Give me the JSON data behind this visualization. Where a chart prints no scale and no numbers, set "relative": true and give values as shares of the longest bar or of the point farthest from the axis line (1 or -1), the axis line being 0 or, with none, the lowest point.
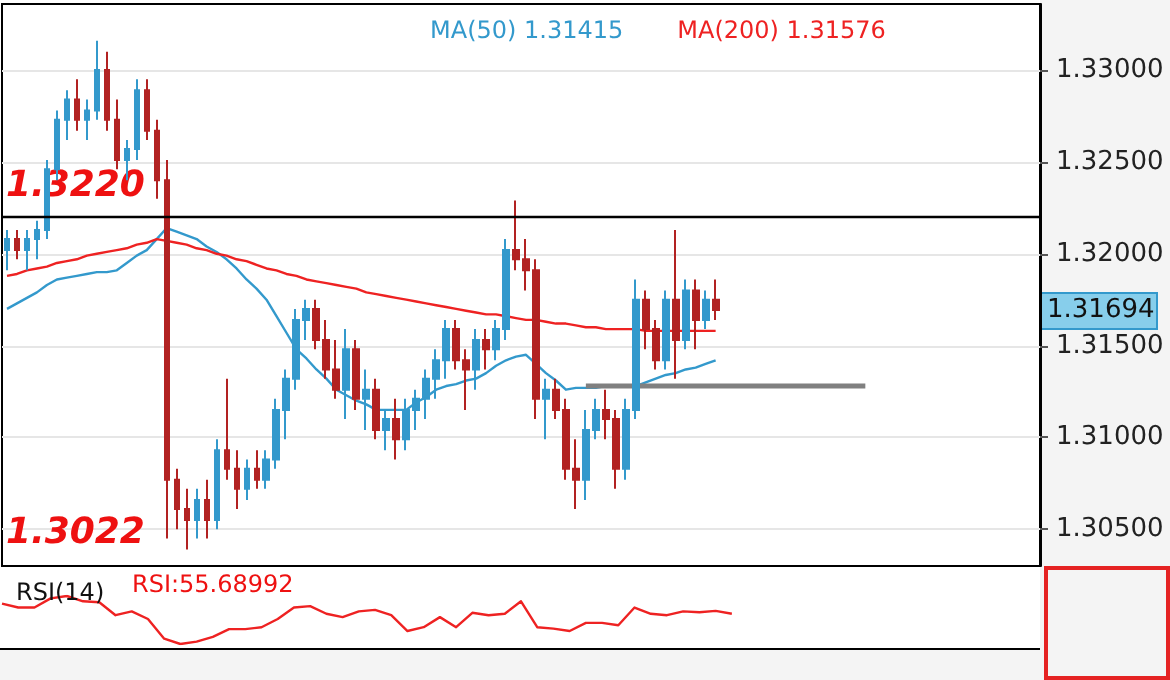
{
  "chart_data": [
    {
      "type": "candlestick",
      "categories": [
        null,
        null,
        null,
        null,
        null,
        null,
        null,
        null,
        null,
        null,
        null,
        null,
        null,
        null,
        null,
        null,
        null,
        null,
        null,
        null,
        null,
        null,
        null,
        null,
        null,
        null,
        null,
        null,
        null,
        null,
        null,
        null,
        null,
        null,
        null,
        null,
        null,
        null,
        null,
        null,
        null,
        null,
        null,
        null,
        null,
        null,
        null,
        null,
        null,
        null,
        null,
        null,
        null,
        null,
        null,
        null,
        null,
        null,
        null,
        null,
        null,
        null,
        null,
        null,
        null,
        null,
        null,
        null,
        null,
        null,
        null,
        null,
        null,
        null,
        null,
        null,
        null,
        null,
        null,
        null,
        null,
        null,
        null,
        null,
        null,
        null,
        null,
        null,
        null,
        null,
        null,
        null,
        null,
        null,
        null,
        null,
        null,
        null,
        null,
        null,
        null,
        null,
        null,
        null
      ],
      "ohlc": [
        [
          1.3202,
          1.3213,
          1.3191,
          1.3208
        ],
        [
          1.3208,
          1.3213,
          1.3197,
          1.3202
        ],
        [
          1.3202,
          1.3213,
          1.3191,
          1.3208
        ],
        [
          1.3208,
          1.3218,
          1.3197,
          1.3213
        ],
        [
          1.3213,
          1.3251,
          1.3208,
          1.3246
        ],
        [
          1.3246,
          1.3278,
          1.324,
          1.3273
        ],
        [
          1.3273,
          1.3289,
          1.3262,
          1.3284
        ],
        [
          1.3284,
          1.3295,
          1.3267,
          1.3273
        ],
        [
          1.3273,
          1.3284,
          1.3262,
          1.3278
        ],
        [
          1.3278,
          1.3316,
          1.3273,
          1.33
        ],
        [
          1.33,
          1.331,
          1.3267,
          1.3273
        ],
        [
          1.3273,
          1.3284,
          1.3246,
          1.3251
        ],
        [
          1.3251,
          1.3262,
          1.324,
          1.3257
        ],
        [
          1.3257,
          1.3295,
          1.3251,
          1.3289
        ],
        [
          1.3289,
          1.3295,
          1.3262,
          1.3267
        ],
        [
          1.3267,
          1.3273,
          1.323,
          1.324
        ],
        [
          1.324,
          1.3251,
          1.3045,
          1.3077
        ],
        [
          1.3077,
          1.3083,
          1.305,
          1.3061
        ],
        [
          1.3061,
          1.3072,
          1.3039,
          1.3055
        ],
        [
          1.3055,
          1.3072,
          1.3045,
          1.3066
        ],
        [
          1.3066,
          1.3077,
          1.3045,
          1.3055
        ],
        [
          1.3055,
          1.3099,
          1.305,
          1.3093
        ],
        [
          1.3093,
          1.3132,
          1.3077,
          1.3083
        ],
        [
          1.3083,
          1.3093,
          1.3061,
          1.3072
        ],
        [
          1.3072,
          1.3088,
          1.3066,
          1.3083
        ],
        [
          1.3083,
          1.3093,
          1.3072,
          1.3077
        ],
        [
          1.3077,
          1.3093,
          1.3072,
          1.3088
        ],
        [
          1.3088,
          1.3121,
          1.3083,
          1.3115
        ],
        [
          1.3115,
          1.3137,
          1.3099,
          1.3132
        ],
        [
          1.3132,
          1.317,
          1.3126,
          1.3164
        ],
        [
          1.3164,
          1.3175,
          1.3153,
          1.317
        ],
        [
          1.317,
          1.3175,
          1.3148,
          1.3153
        ],
        [
          1.3153,
          1.3164,
          1.3132,
          1.3137
        ],
        [
          1.3137,
          1.3153,
          1.3121,
          1.3126
        ],
        [
          1.3126,
          1.3159,
          1.311,
          1.3148
        ],
        [
          1.3148,
          1.3153,
          1.3115,
          1.3121
        ],
        [
          1.3121,
          1.3137,
          1.3104,
          1.3126
        ],
        [
          1.3126,
          1.3132,
          1.3099,
          1.3104
        ],
        [
          1.3104,
          1.3115,
          1.3093,
          1.311
        ],
        [
          1.311,
          1.3121,
          1.3088,
          1.3099
        ],
        [
          1.3099,
          1.3121,
          1.3093,
          1.3115
        ],
        [
          1.3115,
          1.3126,
          1.3104,
          1.3121
        ],
        [
          1.3121,
          1.3137,
          1.311,
          1.3132
        ],
        [
          1.3132,
          1.3148,
          1.3121,
          1.3142
        ],
        [
          1.3142,
          1.3164,
          1.3132,
          1.3159
        ],
        [
          1.3159,
          1.3164,
          1.3137,
          1.3142
        ],
        [
          1.3142,
          1.3148,
          1.3115,
          1.3137
        ],
        [
          1.3137,
          1.3159,
          1.3126,
          1.3153
        ],
        [
          1.3153,
          1.3159,
          1.3137,
          1.3148
        ],
        [
          1.3148,
          1.3164,
          1.3142,
          1.3159
        ],
        [
          1.3159,
          1.3208,
          1.3153,
          1.3202
        ],
        [
          1.3202,
          1.3229,
          1.3191,
          1.3197
        ],
        [
          1.3197,
          1.3208,
          1.318,
          1.3191
        ],
        [
          1.3191,
          1.3197,
          1.311,
          1.3121
        ],
        [
          1.3121,
          1.3132,
          1.3099,
          1.3126
        ],
        [
          1.3126,
          1.3132,
          1.311,
          1.3115
        ],
        [
          1.3115,
          1.3121,
          1.3077,
          1.3083
        ],
        [
          1.3083,
          1.3099,
          1.3061,
          1.3077
        ],
        [
          1.3077,
          1.3115,
          1.3066,
          1.3104
        ],
        [
          1.3104,
          1.3121,
          1.3099,
          1.3115
        ],
        [
          1.3115,
          1.3126,
          1.3099,
          1.311
        ],
        [
          1.311,
          1.3115,
          1.3072,
          1.3083
        ],
        [
          1.3083,
          1.3121,
          1.3077,
          1.3115
        ],
        [
          1.3115,
          1.3186,
          1.311,
          1.3175
        ],
        [
          1.3175,
          1.318,
          1.3148,
          1.3159
        ],
        [
          1.3159,
          1.3164,
          1.3137,
          1.3142
        ],
        [
          1.3142,
          1.318,
          1.3137,
          1.3175
        ],
        [
          1.3175,
          1.3213,
          1.3132,
          1.3153
        ],
        [
          1.3153,
          1.3186,
          1.3148,
          1.318
        ],
        [
          1.318,
          1.3186,
          1.3148,
          1.3164
        ],
        [
          1.3164,
          1.318,
          1.3159,
          1.3175
        ],
        [
          1.3175,
          1.3186,
          1.3164,
          1.31694
        ],
        null,
        null,
        null,
        null,
        null,
        null,
        null,
        null,
        null,
        null,
        null,
        null,
        null,
        null,
        null,
        null,
        null,
        null,
        null,
        null,
        null,
        null,
        null,
        null,
        null,
        null,
        null,
        null,
        null,
        null,
        null,
        null
      ],
      "colors": [
        "#3399cc",
        "#b22222",
        "#3399cc",
        "#3399cc",
        "#3399cc",
        "#3399cc",
        "#3399cc",
        "#b22222",
        "#3399cc",
        "#3399cc",
        "#b22222",
        "#b22222",
        "#3399cc",
        "#3399cc",
        "#b22222",
        "#b22222",
        "#b22222",
        "#b22222",
        "#b22222",
        "#3399cc",
        "#b22222",
        "#3399cc",
        "#b22222",
        "#b22222",
        "#3399cc",
        "#b22222",
        "#3399cc",
        "#3399cc",
        "#3399cc",
        "#3399cc",
        "#3399cc",
        "#b22222",
        "#b22222",
        "#b22222",
        "#3399cc",
        "#b22222",
        "#3399cc",
        "#b22222",
        "#3399cc",
        "#b22222",
        "#3399cc",
        "#3399cc",
        "#3399cc",
        "#3399cc",
        "#3399cc",
        "#b22222",
        "#b22222",
        "#3399cc",
        "#b22222",
        "#3399cc",
        "#3399cc",
        "#b22222",
        "#b22222",
        "#b22222",
        "#3399cc",
        "#b22222",
        "#b22222",
        "#b22222",
        "#3399cc",
        "#3399cc",
        "#b22222",
        "#b22222",
        "#3399cc",
        "#3399cc",
        "#b22222",
        "#b22222",
        "#3399cc",
        "#b22222",
        "#3399cc",
        "#b22222",
        "#3399cc",
        "#b22222",
        null,
        null,
        null,
        null,
        null,
        null,
        null,
        null,
        null,
        null,
        null,
        null,
        null,
        null,
        null,
        null,
        null,
        null,
        null,
        null,
        null,
        null,
        null,
        null,
        null,
        null,
        null,
        null,
        null,
        null,
        null,
        null
      ],
      "series": [
        {
          "name": "MA(50) 1.31415",
          "type": "line",
          "color": "#3399cc",
          "values": [
            1.317,
            1.3173,
            1.3176,
            1.3179,
            1.3183,
            1.3186,
            1.3187,
            1.3188,
            1.3189,
            1.319,
            1.319,
            1.3191,
            1.3195,
            1.3199,
            1.3202,
            1.3208,
            1.3214,
            1.3212,
            1.321,
            1.3208,
            1.3204,
            1.3201,
            1.3197,
            1.3192,
            1.3186,
            1.3181,
            1.3175,
            1.3166,
            1.3157,
            1.3148,
            1.3143,
            1.3137,
            1.3132,
            1.3126,
            1.3123,
            1.312,
            1.3118,
            1.3115,
            1.3115,
            1.3115,
            1.3115,
            1.3119,
            1.3122,
            1.3126,
            1.3128,
            1.3129,
            1.3131,
            1.3132,
            1.3135,
            1.3139,
            1.3142,
            1.3144,
            1.3145,
            1.314,
            1.3135,
            1.3131,
            1.3126,
            1.3127,
            1.3127,
            1.3127,
            1.3128,
            1.3128,
            1.3128,
            1.3128,
            1.313,
            1.3132,
            1.3134,
            1.3135,
            1.3137,
            1.3138,
            1.314,
            1.3142,
            null,
            null,
            null,
            null,
            null,
            null,
            null,
            null,
            null,
            null,
            null,
            null,
            null,
            null,
            null,
            null,
            null,
            null,
            null,
            null,
            null,
            null,
            null,
            null,
            null,
            null,
            null,
            null,
            null,
            null,
            null,
            null
          ]
        },
        {
          "name": "MA(200) 1.31576",
          "type": "line",
          "color": "#ee2222",
          "values": [
            1.3188,
            1.3189,
            1.3191,
            1.3192,
            1.3193,
            1.3195,
            1.3196,
            1.3197,
            1.3199,
            1.32,
            1.3201,
            1.3202,
            1.3203,
            1.3205,
            1.3206,
            1.3208,
            1.3207,
            1.3206,
            1.3205,
            1.3203,
            1.3202,
            1.32,
            1.3199,
            1.3197,
            1.3196,
            1.3194,
            1.3192,
            1.3191,
            1.3189,
            1.3188,
            1.3186,
            1.3185,
            1.3184,
            1.3183,
            1.3182,
            1.3181,
            1.3179,
            1.3178,
            1.3177,
            1.3176,
            1.3175,
            1.3174,
            1.3173,
            1.3172,
            1.3171,
            1.317,
            1.3169,
            1.3168,
            1.3167,
            1.3167,
            1.3166,
            1.3165,
            1.3164,
            1.3164,
            1.3163,
            1.3162,
            1.3162,
            1.3161,
            1.316,
            1.316,
            1.3159,
            1.3159,
            1.3159,
            1.3159,
            1.3158,
            1.3158,
            1.3158,
            1.3158,
            1.3158,
            1.3158,
            1.3158,
            1.3158,
            null,
            null,
            null,
            null,
            null,
            null,
            null,
            null,
            null,
            null,
            null,
            null,
            null,
            null,
            null,
            null,
            null,
            null,
            null,
            null,
            null,
            null,
            null,
            null,
            null,
            null,
            null,
            null,
            null,
            null,
            null,
            null
          ]
        },
        {
          "type": "line",
          "color": "#808080",
          "values": [
            null,
            null,
            null,
            null,
            null,
            null,
            null,
            null,
            null,
            null,
            null,
            null,
            null,
            null,
            null,
            null,
            null,
            null,
            null,
            null,
            null,
            null,
            null,
            null,
            null,
            null,
            null,
            null,
            null,
            null,
            null,
            null,
            null,
            null,
            null,
            null,
            null,
            null,
            null,
            null,
            null,
            null,
            null,
            null,
            null,
            null,
            null,
            null,
            null,
            null,
            null,
            null,
            null,
            null,
            null,
            null,
            null,
            null,
            1.3128,
            1.3128,
            1.3128,
            1.3128,
            1.3128,
            1.3128,
            1.3128,
            1.3128,
            1.3128,
            1.3128,
            1.3128,
            1.3128,
            1.3128,
            1.3128,
            1.3128,
            1.3128,
            1.3128,
            1.3128,
            1.3128,
            1.3128,
            1.3128,
            1.3128,
            1.3128,
            1.3128,
            1.3128,
            1.3128,
            1.3128,
            1.3128,
            1.3128,
            null,
            null,
            null,
            null,
            null,
            null,
            null,
            null,
            null,
            null,
            null,
            null,
            null,
            null,
            null,
            null,
            null
          ]
        }
      ],
      "ylim": [
        1.303,
        1.3336
      ],
      "yticks": [
        {
          "value": 1.305,
          "label": "1.30500"
        },
        {
          "value": 1.31,
          "label": "1.31000"
        },
        {
          "value": 1.315,
          "label": "1.31500"
        },
        {
          "value": 1.32,
          "label": "1.32000"
        },
        {
          "value": 1.325,
          "label": "1.32500"
        },
        {
          "value": 1.33,
          "label": "1.33000"
        }
      ],
      "ref_lines": [
        {
          "axis": "y",
          "value": 1.322,
          "color": "#000000",
          "label": "1.3220"
        }
      ],
      "annotations": [
        "1.3022",
        "1.31694"
      ],
      "grid": "y",
      "legend": "top",
      "tick_labels": "y"
    },
    {
      "type": "line",
      "title": "RSI(14)",
      "annotations": [
        "RSI:55.68992"
      ],
      "relative": true,
      "color": "#ee2222",
      "tick_labels": false,
      "categories": [
        null,
        null,
        null,
        null,
        null,
        null,
        null,
        null,
        null,
        null,
        null,
        null,
        null,
        null,
        null,
        null,
        null,
        null,
        null,
        null,
        null,
        null,
        null,
        null,
        null,
        null,
        null,
        null,
        null,
        null,
        null,
        null,
        null,
        null,
        null,
        null,
        null,
        null,
        null,
        null,
        null,
        null,
        null,
        null,
        null,
        null,
        null,
        null,
        null,
        null,
        null,
        null,
        null,
        null,
        null,
        null,
        null,
        null,
        null,
        null,
        null,
        null,
        null,
        null,
        null
      ],
      "values": [
        0.84,
        0.76,
        0.76,
        0.95,
        1,
        0.89,
        0.87,
        0.6,
        0.68,
        0.52,
        0.11,
        0,
        0.05,
        0.15,
        0.31,
        0.31,
        0.35,
        0.52,
        0.76,
        0.79,
        0.63,
        0.56,
        0.68,
        0.71,
        0.6,
        0.27,
        0.35,
        0.56,
        0.35,
        0.65,
        0.6,
        0.63,
        0.89,
        0.35,
        0.32,
        0.27,
        0.44,
        0.44,
        0.39,
        0.76,
        0.63,
        0.6,
        0.68,
        0.66,
        0.69,
        0.63,
        null,
        null,
        null,
        null,
        null,
        null,
        null,
        null,
        null,
        null,
        null,
        null,
        null,
        null,
        null,
        null,
        null,
        null,
        null
      ]
    }
  ]
}
